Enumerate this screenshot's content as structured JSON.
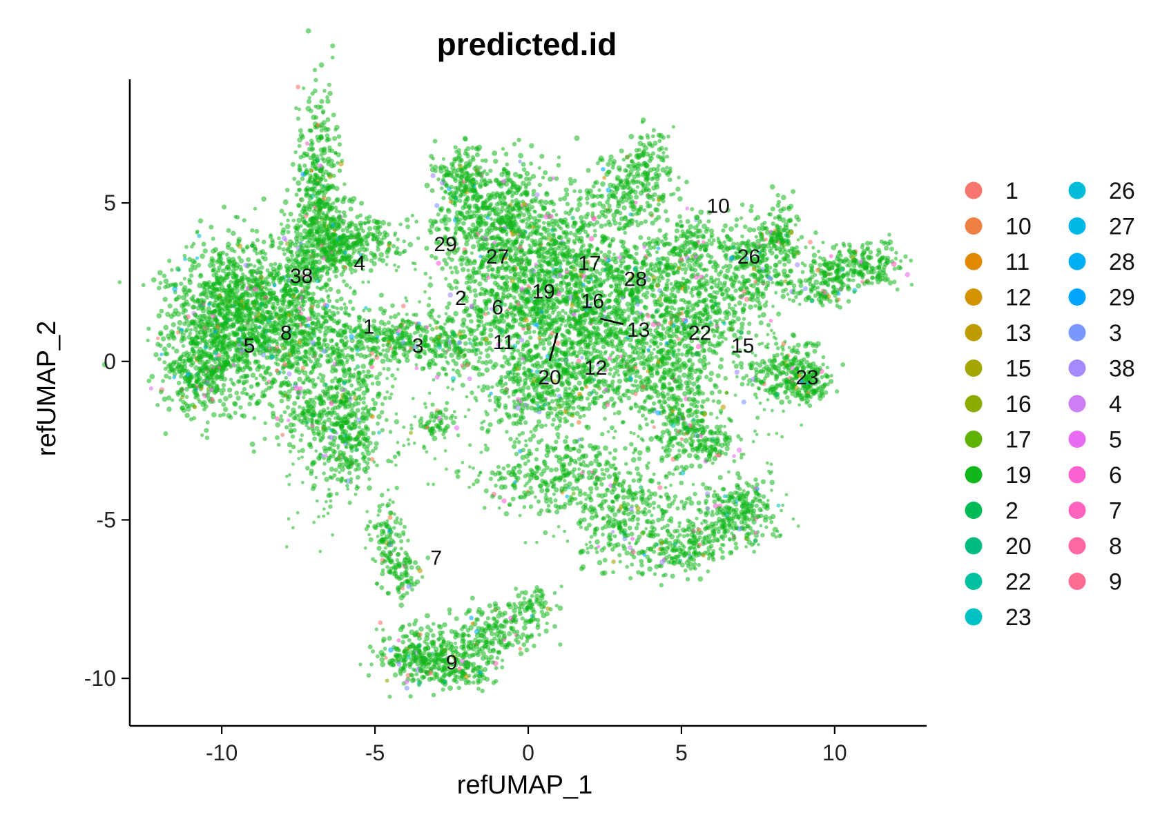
{
  "chart_data": {
    "type": "scatter",
    "title": "predicted.id",
    "xlabel": "refUMAP_1",
    "ylabel": "refUMAP_2",
    "xlim": [
      -13,
      13
    ],
    "ylim": [
      -11.5,
      8.9
    ],
    "xticks": [
      -10,
      -5,
      0,
      5,
      10
    ],
    "yticks": [
      5,
      0,
      -5,
      -10
    ],
    "xtick_labels": [
      "-10",
      "-5",
      "0",
      "5",
      "10"
    ],
    "ytick_labels": [
      "5",
      "0",
      "-5",
      "-10"
    ],
    "grid": false,
    "legend_position": "right",
    "dominant_color": "#10B71A",
    "series": [
      {
        "name": "1",
        "color": "#F8766D"
      },
      {
        "name": "10",
        "color": "#EE8043"
      },
      {
        "name": "11",
        "color": "#E18A00"
      },
      {
        "name": "12",
        "color": "#D39200"
      },
      {
        "name": "13",
        "color": "#BE9C00"
      },
      {
        "name": "15",
        "color": "#A3A500"
      },
      {
        "name": "16",
        "color": "#8CAB00"
      },
      {
        "name": "17",
        "color": "#60B200"
      },
      {
        "name": "19",
        "color": "#10B71A"
      },
      {
        "name": "2",
        "color": "#00BA55"
      },
      {
        "name": "20",
        "color": "#00BC81"
      },
      {
        "name": "22",
        "color": "#00C19F"
      },
      {
        "name": "23",
        "color": "#00C1C1"
      },
      {
        "name": "26",
        "color": "#00BCD8"
      },
      {
        "name": "27",
        "color": "#00B8E5"
      },
      {
        "name": "28",
        "color": "#00AEF2"
      },
      {
        "name": "29",
        "color": "#00A5FF"
      },
      {
        "name": "3",
        "color": "#7997FF"
      },
      {
        "name": "38",
        "color": "#A58AFF"
      },
      {
        "name": "4",
        "color": "#CC7EF5"
      },
      {
        "name": "5",
        "color": "#E76BF3"
      },
      {
        "name": "6",
        "color": "#FD61D1"
      },
      {
        "name": "7",
        "color": "#FF62BC"
      },
      {
        "name": "8",
        "color": "#FF67A4"
      },
      {
        "name": "9",
        "color": "#FF6C91"
      }
    ],
    "cluster_labels": [
      {
        "label": "10",
        "x": 6.2,
        "y": 4.9
      },
      {
        "label": "26",
        "x": 7.2,
        "y": 3.3
      },
      {
        "label": "29",
        "x": -2.7,
        "y": 3.7
      },
      {
        "label": "27",
        "x": -1.0,
        "y": 3.3
      },
      {
        "label": "17",
        "x": 2.0,
        "y": 3.1
      },
      {
        "label": "4",
        "x": -5.5,
        "y": 3.1
      },
      {
        "label": "38",
        "x": -7.4,
        "y": 2.7
      },
      {
        "label": "28",
        "x": 3.5,
        "y": 2.6
      },
      {
        "label": "19",
        "x": 0.5,
        "y": 2.2
      },
      {
        "label": "2",
        "x": -2.2,
        "y": 2.0
      },
      {
        "label": "16",
        "x": 2.1,
        "y": 1.9
      },
      {
        "label": "6",
        "x": -1.0,
        "y": 1.7
      },
      {
        "label": "1",
        "x": -5.2,
        "y": 1.1
      },
      {
        "label": "13",
        "x": 3.6,
        "y": 1.0,
        "leader_to": {
          "x": 2.35,
          "y": 1.35
        }
      },
      {
        "label": "8",
        "x": -7.9,
        "y": 0.9
      },
      {
        "label": "22",
        "x": 5.6,
        "y": 0.9
      },
      {
        "label": "11",
        "x": -0.8,
        "y": 0.6
      },
      {
        "label": "5",
        "x": -9.1,
        "y": 0.5
      },
      {
        "label": "3",
        "x": -3.6,
        "y": 0.5
      },
      {
        "label": "15",
        "x": 7.0,
        "y": 0.5
      },
      {
        "label": "12",
        "x": 2.2,
        "y": -0.2
      },
      {
        "label": "20",
        "x": 0.7,
        "y": -0.5,
        "leader_to": {
          "x": 0.95,
          "y": 0.9
        }
      },
      {
        "label": "23",
        "x": 9.1,
        "y": -0.5
      },
      {
        "label": "7",
        "x": -3.0,
        "y": -6.2
      },
      {
        "label": "9",
        "x": -2.5,
        "y": -9.5
      }
    ]
  }
}
